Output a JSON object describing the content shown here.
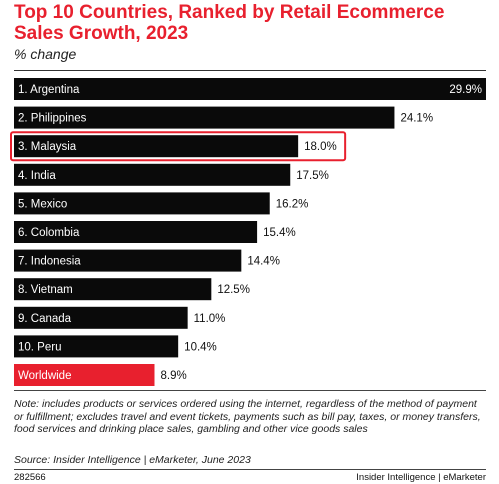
{
  "chart_data": {
    "type": "bar",
    "orientation": "horizontal",
    "title": "Top 10 Countries, Ranked by Retail Ecommerce Sales Growth, 2023",
    "subtitle": "% change",
    "categories": [
      "1. Argentina",
      "2. Philippines",
      "3. Malaysia",
      "4. India",
      "5. Mexico",
      "6. Colombia",
      "7. Indonesia",
      "8. Vietnam",
      "9. Canada",
      "10. Peru",
      "Worldwide"
    ],
    "values": [
      29.9,
      24.1,
      18.0,
      17.5,
      16.2,
      15.4,
      14.4,
      12.5,
      11.0,
      10.4,
      8.9
    ],
    "value_labels": [
      "29.9%",
      "24.1%",
      "18.0%",
      "17.5%",
      "16.2%",
      "15.4%",
      "14.4%",
      "12.5%",
      "11.0%",
      "10.4%",
      "8.9%"
    ],
    "xlim": [
      0,
      29.9
    ],
    "grid": false,
    "highlight": "3. Malaysia",
    "colors": {
      "bar": "#0a0a0a",
      "worldwide": "#e8202e",
      "highlight_box": "#e8202e"
    }
  },
  "note": "Note: includes products or services ordered using the internet, regardless of the method of payment or fulfillment; excludes travel and event tickets, payments such as bill pay, taxes, or money transfers, food services and drinking place sales, gambling and other vice goods sales",
  "source": "Source: Insider Intelligence | eMarketer, June 2023",
  "footer": {
    "id": "282566",
    "brand": "Insider Intelligence | eMarketer"
  }
}
